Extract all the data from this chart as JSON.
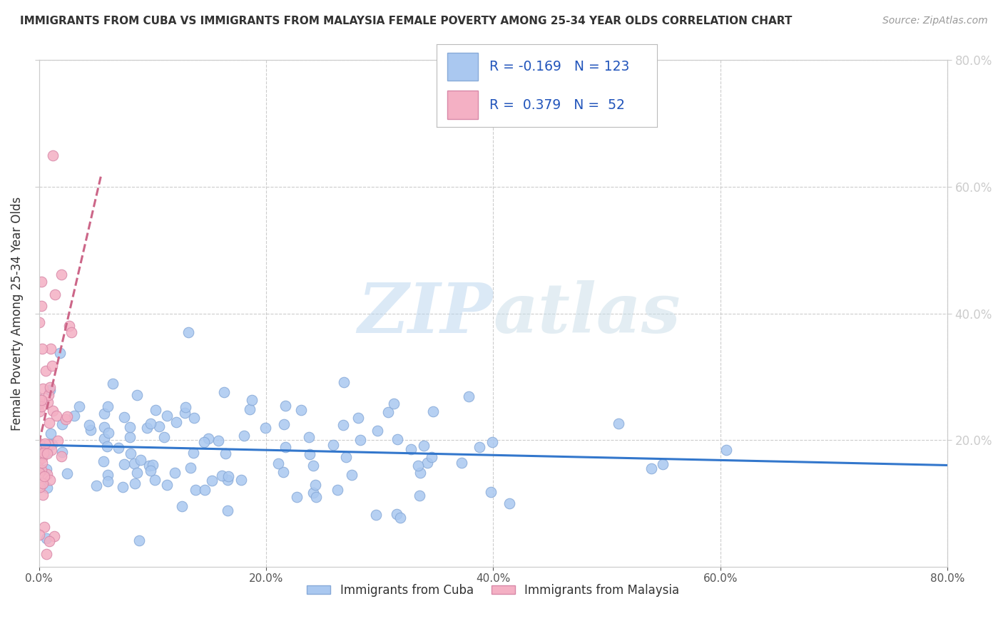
{
  "title": "IMMIGRANTS FROM CUBA VS IMMIGRANTS FROM MALAYSIA FEMALE POVERTY AMONG 25-34 YEAR OLDS CORRELATION CHART",
  "source": "Source: ZipAtlas.com",
  "ylabel": "Female Poverty Among 25-34 Year Olds",
  "xlim": [
    0.0,
    0.8
  ],
  "ylim": [
    0.0,
    0.8
  ],
  "xtick_vals": [
    0.0,
    0.2,
    0.4,
    0.6,
    0.8
  ],
  "ytick_vals": [
    0.2,
    0.4,
    0.6,
    0.8
  ],
  "right_ytick_labels": [
    "20.0%",
    "40.0%",
    "60.0%",
    "80.0%"
  ],
  "legend_bottom": [
    "Immigrants from Cuba",
    "Immigrants from Malaysia"
  ],
  "cuba_color": "#aac8f0",
  "malaysia_color": "#f4b0c4",
  "cuba_edge": "#88aad8",
  "malaysia_edge": "#d888a8",
  "trend_cuba_color": "#3377cc",
  "trend_malaysia_color": "#cc6688",
  "R_cuba": -0.169,
  "N_cuba": 123,
  "R_malaysia": 0.379,
  "N_malaysia": 52,
  "watermark_zip": "ZIP",
  "watermark_atlas": "atlas",
  "background_color": "#ffffff",
  "grid_color": "#cccccc",
  "title_color": "#333333",
  "source_color": "#999999",
  "legend_text_color": "#2255bb"
}
